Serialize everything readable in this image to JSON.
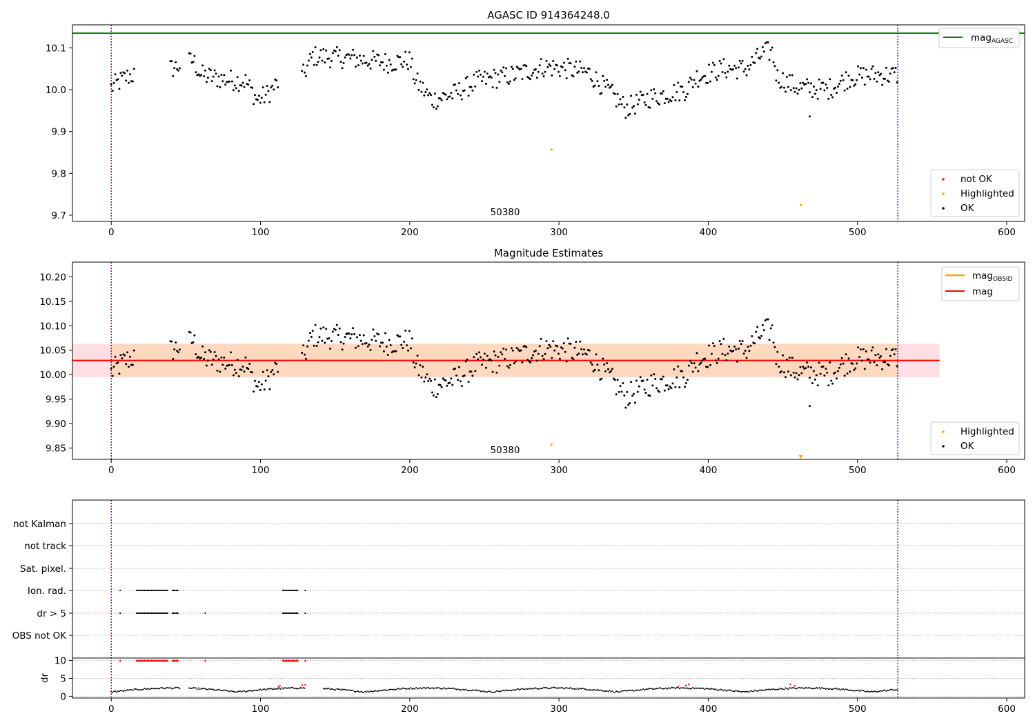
{
  "chart_data": [
    {
      "type": "scatter",
      "title": "AGASC ID 914364248.0",
      "xlim": [
        -26,
        612
      ],
      "ylim": [
        9.685,
        10.155
      ],
      "xticks": [
        0,
        100,
        200,
        300,
        400,
        500,
        600
      ],
      "yticks": [
        9.7,
        9.8,
        9.9,
        10.0,
        10.1
      ],
      "ytick_labels": [
        "9.7",
        "9.8",
        "9.9",
        "10.0",
        "10.1"
      ],
      "annotation": {
        "text": "50380",
        "x": 264,
        "y": 9.692
      },
      "vlines": [
        0,
        527
      ],
      "vline_color": "#800080",
      "hline": {
        "name": "mag",
        "sub": "AGASC",
        "y": 10.135,
        "color": "#008000"
      },
      "legend_top": [
        {
          "name": "mag",
          "sub": "AGASC",
          "color": "#008000",
          "kind": "line"
        }
      ],
      "legend_bottom": [
        {
          "name": "not OK",
          "color": "#ff0000",
          "kind": "dot"
        },
        {
          "name": "Highlighted",
          "color": "#ffa500",
          "kind": "dot"
        },
        {
          "name": "OK",
          "color": "#000000",
          "kind": "dot"
        }
      ],
      "highlighted": [
        {
          "x": 295,
          "y": 9.857
        },
        {
          "x": 462,
          "y": 9.724
        }
      ]
    },
    {
      "type": "scatter",
      "title": "Magnitude Estimates",
      "xlim": [
        -26,
        612
      ],
      "ylim": [
        9.827,
        10.23
      ],
      "xticks": [
        0,
        100,
        200,
        300,
        400,
        500,
        600
      ],
      "yticks": [
        9.85,
        9.9,
        9.95,
        10.0,
        10.05,
        10.1,
        10.15,
        10.2
      ],
      "ytick_labels": [
        "9.85",
        "9.90",
        "9.95",
        "10.00",
        "10.05",
        "10.10",
        "10.15",
        "10.20"
      ],
      "annotation": {
        "text": "50380",
        "x": 264,
        "y": 9.838
      },
      "vlines": [
        0,
        527
      ],
      "mag_line": {
        "name": "mag",
        "y": 10.029,
        "color": "#ff0000"
      },
      "mag_obsid": {
        "name": "mag",
        "sub": "OBSID",
        "y": 10.029,
        "color": "#ffa500"
      },
      "band_red": {
        "x0": -26,
        "x1": 555,
        "y0": 9.995,
        "y1": 10.063
      },
      "band_orange": {
        "x0": 0,
        "x1": 527,
        "y0": 9.995,
        "y1": 10.063
      },
      "legend_top": [
        {
          "name": "mag",
          "sub": "OBSID",
          "color": "#ffa500",
          "kind": "line"
        },
        {
          "name": "mag",
          "color": "#ff0000",
          "kind": "line"
        }
      ],
      "legend_bottom": [
        {
          "name": "Highlighted",
          "color": "#ffa500",
          "kind": "dot"
        },
        {
          "name": "OK",
          "color": "#000000",
          "kind": "dot"
        }
      ],
      "highlighted": [
        {
          "x": 295,
          "y": 9.857
        }
      ],
      "off_axis_marker": {
        "x": 462
      }
    },
    {
      "type": "scatter",
      "title": "",
      "xlim": [
        -26,
        612
      ],
      "xticks": [
        0,
        100,
        200,
        300,
        400,
        500,
        600
      ],
      "vlines": [
        0,
        527
      ],
      "flag_rows": [
        "not Kalman",
        "not track",
        "Sat. pixel.",
        "Ion. rad.",
        "dr > 5",
        "OBS not OK"
      ],
      "flag_ranges": {
        "Ion. rad.": [
          [
            6,
            6
          ],
          [
            17,
            38
          ],
          [
            41,
            45
          ],
          [
            115,
            125
          ],
          [
            130,
            130
          ]
        ],
        "dr > 5": [
          [
            6,
            6
          ],
          [
            17,
            38
          ],
          [
            41,
            45
          ],
          [
            63,
            63
          ],
          [
            115,
            125
          ],
          [
            130,
            130
          ]
        ]
      },
      "dr_ylim": [
        -0.5,
        10.5
      ],
      "dr_yticks": [
        0,
        5,
        10
      ],
      "dr_ylabel": "dr",
      "dr_red_markers": [
        [
          6,
          6
        ],
        [
          17,
          38
        ],
        [
          41,
          45
        ],
        [
          63,
          63
        ],
        [
          115,
          125
        ],
        [
          130,
          130
        ]
      ]
    }
  ]
}
